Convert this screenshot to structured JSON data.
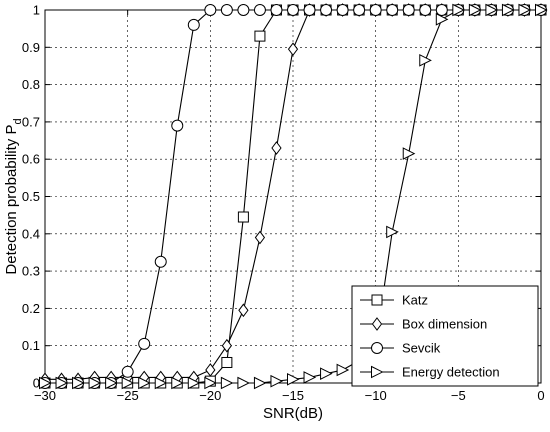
{
  "chart_data": {
    "type": "line",
    "xlabel": "SNR(dB)",
    "ylabel": "Detection probability P",
    "ylabel_subscript": "d",
    "xlim": [
      -30,
      0
    ],
    "ylim": [
      0,
      1
    ],
    "xticks": [
      -30,
      -25,
      -20,
      -15,
      -10,
      -5,
      0
    ],
    "yticks": [
      0,
      0.1,
      0.2,
      0.3,
      0.4,
      0.5,
      0.6,
      0.7,
      0.8,
      0.9,
      1
    ],
    "xtick_labels": [
      "−30",
      "−25",
      "−20",
      "−15",
      "−10",
      "−5",
      "0"
    ],
    "ytick_labels": [
      "0",
      "0.1",
      "0.2",
      "0.3",
      "0.4",
      "0.5",
      "0.6",
      "0.7",
      "0.8",
      "0.9",
      "1"
    ],
    "grid": true,
    "legend_position": "bottom-right",
    "series": [
      {
        "name": "Katz",
        "marker": "square",
        "x": [
          -30,
          -29,
          -28,
          -27,
          -26,
          -25,
          -24,
          -23,
          -22,
          -21,
          -20,
          -19,
          -18,
          -17,
          -16,
          -15,
          -14,
          -13,
          -12,
          -11,
          -10,
          -9,
          -8,
          -7,
          -6,
          -5,
          -4,
          -3,
          -2,
          -1,
          0
        ],
        "y": [
          0,
          0,
          0,
          0,
          0,
          0,
          0,
          0,
          0,
          0,
          0.005,
          0.055,
          0.445,
          0.93,
          1,
          1,
          1,
          1,
          1,
          1,
          1,
          1,
          1,
          1,
          1,
          1,
          1,
          1,
          1,
          1,
          1
        ]
      },
      {
        "name": "Box dimension",
        "marker": "diamond",
        "x": [
          -30,
          -29,
          -28,
          -27,
          -26,
          -25,
          -24,
          -23,
          -22,
          -21,
          -20,
          -19,
          -18,
          -17,
          -16,
          -15,
          -14,
          -13,
          -12,
          -11,
          -10,
          -9,
          -8,
          -7,
          -6,
          -5,
          -4,
          -3,
          -2,
          -1,
          0
        ],
        "y": [
          0.01,
          0.01,
          0.01,
          0.015,
          0.015,
          0.015,
          0.015,
          0.015,
          0.015,
          0.015,
          0.035,
          0.1,
          0.195,
          0.39,
          0.63,
          0.895,
          1,
          1,
          1,
          1,
          1,
          1,
          1,
          1,
          1,
          1,
          1,
          1,
          1,
          1,
          1
        ]
      },
      {
        "name": "Sevcik",
        "marker": "circle",
        "x": [
          -30,
          -29,
          -28,
          -27,
          -26,
          -25,
          -24,
          -23,
          -22,
          -21,
          -20,
          -19,
          -18,
          -17,
          -16,
          -15,
          -14,
          -13,
          -12,
          -11,
          -10,
          -9,
          -8,
          -7,
          -6,
          -5,
          -4,
          -3,
          -2,
          -1,
          0
        ],
        "y": [
          0,
          0,
          0,
          0,
          0,
          0.03,
          0.105,
          0.325,
          0.69,
          0.96,
          1,
          1,
          1,
          1,
          1,
          1,
          1,
          1,
          1,
          1,
          1,
          1,
          1,
          1,
          1,
          1,
          1,
          1,
          1,
          1,
          1
        ]
      },
      {
        "name": "Energy detection",
        "marker": "triangle-right",
        "x": [
          -30,
          -29,
          -28,
          -27,
          -26,
          -25,
          -24,
          -23,
          -22,
          -21,
          -20,
          -19,
          -18,
          -17,
          -16,
          -15,
          -14,
          -13,
          -12,
          -11,
          -10,
          -9,
          -8,
          -7,
          -6,
          -5,
          -4,
          -3,
          -2,
          -1,
          0
        ],
        "y": [
          0,
          0,
          0,
          0,
          0,
          0,
          0,
          0,
          0,
          0,
          0,
          0,
          0,
          0,
          0.005,
          0.01,
          0.015,
          0.025,
          0.035,
          0.06,
          0.1,
          0.405,
          0.615,
          0.865,
          0.975,
          1,
          1,
          1,
          1,
          1,
          1
        ]
      }
    ]
  }
}
